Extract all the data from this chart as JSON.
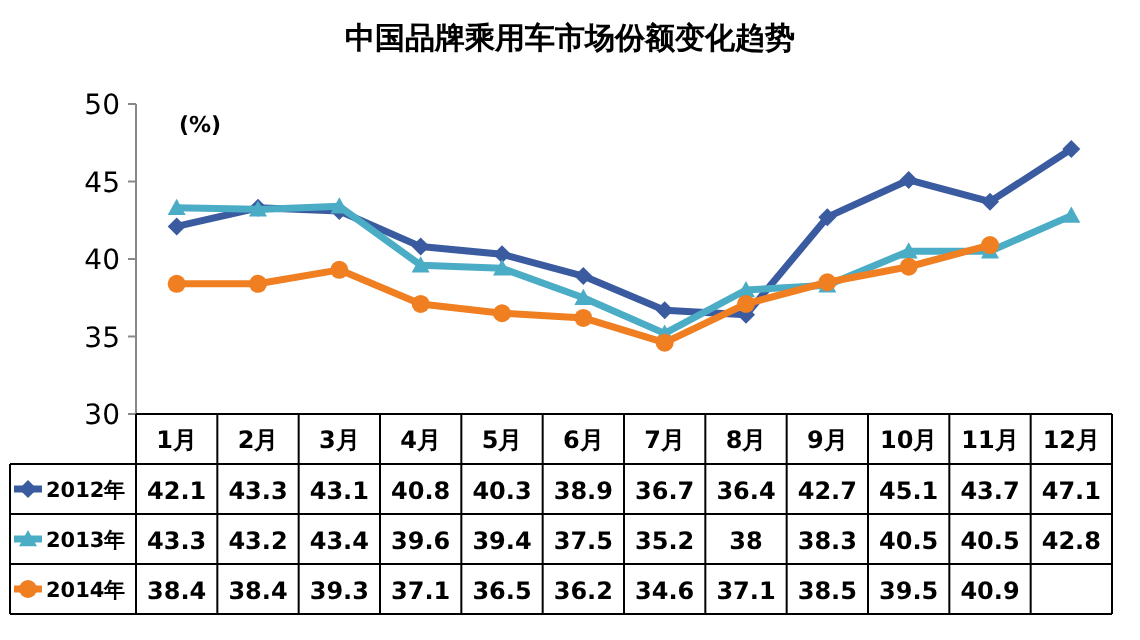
{
  "chart_data": {
    "type": "line",
    "title": "中国品牌乘用车市场份额变化趋势",
    "ylabel": "(%)",
    "categories": [
      "1月",
      "2月",
      "3月",
      "4月",
      "5月",
      "6月",
      "7月",
      "8月",
      "9月",
      "10月",
      "11月",
      "12月"
    ],
    "series": [
      {
        "name": "2012年",
        "color": "#3b5ba0",
        "marker": "diamond",
        "values": [
          42.1,
          43.3,
          43.1,
          40.8,
          40.3,
          38.9,
          36.7,
          36.4,
          42.7,
          45.1,
          43.7,
          47.1
        ]
      },
      {
        "name": "2013年",
        "color": "#4bacc6",
        "marker": "triangle",
        "values": [
          43.3,
          43.2,
          43.4,
          39.6,
          39.4,
          37.5,
          35.2,
          38,
          38.3,
          40.5,
          40.5,
          42.8
        ]
      },
      {
        "name": "2014年",
        "color": "#f07f22",
        "marker": "circle",
        "values": [
          38.4,
          38.4,
          39.3,
          37.1,
          36.5,
          36.2,
          34.6,
          37.1,
          38.5,
          39.5,
          40.9,
          null
        ]
      }
    ],
    "ylim": [
      30,
      50
    ],
    "yticks": [
      30,
      35,
      40,
      45,
      50
    ],
    "grid": false,
    "data_labels": true,
    "legend": "bottom left",
    "line_style": "solid"
  }
}
